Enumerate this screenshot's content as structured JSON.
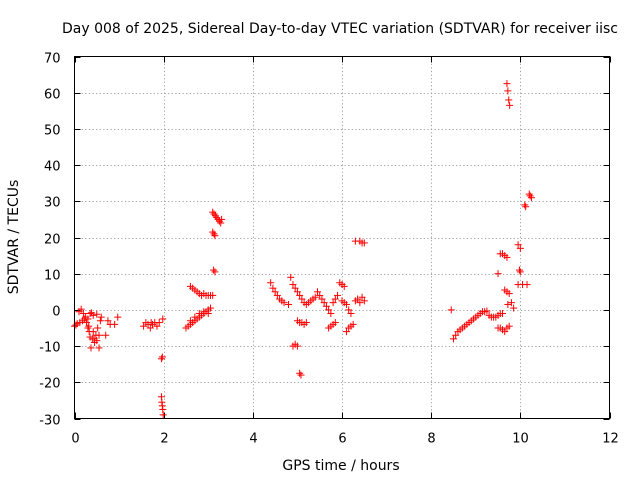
{
  "chart_data": {
    "type": "scatter",
    "title": "Day 008 of 2025, Sidereal Day-to-day VTEC variation (SDTVAR) for receiver iisc",
    "xlabel": "GPS time / hours",
    "ylabel": "SDTVAR / TECUs",
    "xlim": [
      0,
      12
    ],
    "ylim": [
      -30,
      70
    ],
    "xticks": [
      0,
      2,
      4,
      6,
      8,
      10,
      12
    ],
    "yticks": [
      -30,
      -20,
      -10,
      0,
      10,
      20,
      30,
      40,
      50,
      60,
      70
    ],
    "grid": true,
    "marker": "+",
    "marker_color": "#ff0000",
    "series": [
      {
        "name": "SDTVAR",
        "points": [
          [
            0.0,
            -4.5
          ],
          [
            0.03,
            -4.2
          ],
          [
            0.06,
            -3.8
          ],
          [
            0.1,
            -0.5
          ],
          [
            0.12,
            -3.5
          ],
          [
            0.15,
            0.2
          ],
          [
            0.18,
            -3
          ],
          [
            0.2,
            -1
          ],
          [
            0.22,
            -2.5
          ],
          [
            0.25,
            -2
          ],
          [
            0.27,
            -3.5
          ],
          [
            0.3,
            -5
          ],
          [
            0.32,
            -4.5
          ],
          [
            0.33,
            -6
          ],
          [
            0.35,
            -7.5
          ],
          [
            0.37,
            -10.5
          ],
          [
            0.4,
            -8
          ],
          [
            0.42,
            -6
          ],
          [
            0.44,
            -8
          ],
          [
            0.45,
            -9
          ],
          [
            0.48,
            -7
          ],
          [
            0.5,
            -8.5
          ],
          [
            0.52,
            -5
          ],
          [
            0.55,
            -10.5
          ],
          [
            0.55,
            -7
          ],
          [
            0.58,
            -3
          ],
          [
            0.6,
            -2
          ],
          [
            0.42,
            -1.5
          ],
          [
            0.38,
            -0.8
          ],
          [
            0.5,
            -1.2
          ],
          [
            0.7,
            -7
          ],
          [
            0.75,
            -3
          ],
          [
            0.8,
            -4
          ],
          [
            0.9,
            -4
          ],
          [
            0.97,
            -2
          ],
          [
            0.3,
            -2.5
          ],
          [
            0.35,
            -1
          ],
          [
            1.55,
            -4.5
          ],
          [
            1.6,
            -3.5
          ],
          [
            1.65,
            -4
          ],
          [
            1.7,
            -5
          ],
          [
            1.72,
            -3.5
          ],
          [
            1.75,
            -4
          ],
          [
            1.8,
            -3.5
          ],
          [
            1.85,
            -4.5
          ],
          [
            1.9,
            -3.5
          ],
          [
            1.95,
            -13.5
          ],
          [
            1.97,
            -13
          ],
          [
            1.98,
            -2.5
          ],
          [
            1.95,
            -24
          ],
          [
            1.96,
            -25.5
          ],
          [
            1.97,
            -26.5
          ],
          [
            1.98,
            -27.5
          ],
          [
            1.99,
            -29
          ],
          [
            2.5,
            -5
          ],
          [
            2.55,
            -4.5
          ],
          [
            2.6,
            -4
          ],
          [
            2.65,
            -3.5
          ],
          [
            2.7,
            -3
          ],
          [
            2.75,
            -2.5
          ],
          [
            2.8,
            -2
          ],
          [
            2.85,
            -1.5
          ],
          [
            2.9,
            -1
          ],
          [
            2.95,
            -0.5
          ],
          [
            3.0,
            0
          ],
          [
            3.05,
            0.5
          ],
          [
            2.6,
            -3
          ],
          [
            2.7,
            -2
          ],
          [
            2.8,
            -1
          ],
          [
            2.9,
            -0.5
          ],
          [
            3.0,
            -1
          ],
          [
            2.6,
            6.5
          ],
          [
            2.65,
            6
          ],
          [
            2.7,
            5.5
          ],
          [
            2.75,
            5
          ],
          [
            2.8,
            4.5
          ],
          [
            2.85,
            4
          ],
          [
            2.9,
            4.5
          ],
          [
            2.95,
            4
          ],
          [
            3.0,
            4
          ],
          [
            3.05,
            4
          ],
          [
            3.1,
            4
          ],
          [
            3.1,
            21.5
          ],
          [
            3.13,
            21
          ],
          [
            3.15,
            20.5
          ],
          [
            3.12,
            11
          ],
          [
            3.15,
            10.5
          ],
          [
            3.1,
            27
          ],
          [
            3.13,
            26.5
          ],
          [
            3.16,
            26
          ],
          [
            3.19,
            25.5
          ],
          [
            3.22,
            25
          ],
          [
            3.25,
            24.5
          ],
          [
            3.28,
            24
          ],
          [
            3.3,
            25
          ],
          [
            4.4,
            7.5
          ],
          [
            4.45,
            6
          ],
          [
            4.5,
            5
          ],
          [
            4.55,
            4
          ],
          [
            4.6,
            3
          ],
          [
            4.65,
            2.5
          ],
          [
            4.7,
            2
          ],
          [
            4.8,
            1.5
          ],
          [
            4.85,
            9
          ],
          [
            4.9,
            7
          ],
          [
            4.95,
            6
          ],
          [
            5.0,
            5
          ],
          [
            5.05,
            4
          ],
          [
            5.1,
            3
          ],
          [
            5.15,
            2
          ],
          [
            5.2,
            1.5
          ],
          [
            5.25,
            2
          ],
          [
            5.3,
            2.5
          ],
          [
            5.35,
            3
          ],
          [
            5.4,
            3.5
          ],
          [
            5.45,
            5
          ],
          [
            5.5,
            4
          ],
          [
            5.55,
            3
          ],
          [
            5.6,
            2
          ],
          [
            5.65,
            1
          ],
          [
            5.7,
            0
          ],
          [
            5.75,
            -1
          ],
          [
            5.8,
            2
          ],
          [
            5.85,
            3
          ],
          [
            5.9,
            4
          ],
          [
            5.0,
            -3
          ],
          [
            5.05,
            -3.5
          ],
          [
            5.1,
            -3.5
          ],
          [
            5.15,
            -4
          ],
          [
            5.2,
            -3.5
          ],
          [
            4.9,
            -10
          ],
          [
            4.95,
            -9.5
          ],
          [
            5.0,
            -10
          ],
          [
            5.05,
            -17.5
          ],
          [
            5.08,
            -18
          ],
          [
            5.95,
            7.5
          ],
          [
            6.0,
            7
          ],
          [
            6.05,
            6.5
          ],
          [
            6.0,
            2.5
          ],
          [
            6.05,
            2
          ],
          [
            6.1,
            1.5
          ],
          [
            6.15,
            0
          ],
          [
            6.2,
            -1
          ],
          [
            5.85,
            -3.5
          ],
          [
            5.8,
            -4
          ],
          [
            5.75,
            -4.5
          ],
          [
            5.7,
            -5
          ],
          [
            6.1,
            -6
          ],
          [
            6.15,
            -5
          ],
          [
            6.2,
            -4.5
          ],
          [
            6.25,
            -4
          ],
          [
            6.3,
            2.5
          ],
          [
            6.35,
            3
          ],
          [
            6.4,
            2
          ],
          [
            6.45,
            3.5
          ],
          [
            6.5,
            2.5
          ],
          [
            6.3,
            19
          ],
          [
            6.4,
            19
          ],
          [
            6.45,
            18.5
          ],
          [
            6.5,
            18.5
          ],
          [
            8.45,
            0
          ],
          [
            8.5,
            -8
          ],
          [
            8.55,
            -7
          ],
          [
            8.6,
            -6
          ],
          [
            8.65,
            -5.5
          ],
          [
            8.7,
            -5
          ],
          [
            8.75,
            -4.5
          ],
          [
            8.8,
            -4
          ],
          [
            8.85,
            -3.5
          ],
          [
            8.9,
            -3
          ],
          [
            8.95,
            -2.5
          ],
          [
            9.0,
            -2
          ],
          [
            9.05,
            -1.5
          ],
          [
            9.1,
            -1
          ],
          [
            9.15,
            -0.5
          ],
          [
            9.2,
            -0.5
          ],
          [
            9.25,
            -0.3
          ],
          [
            9.3,
            -1.5
          ],
          [
            9.35,
            -2
          ],
          [
            9.4,
            -2
          ],
          [
            9.45,
            -2
          ],
          [
            9.5,
            -1.5
          ],
          [
            9.55,
            -1
          ],
          [
            9.6,
            -1
          ],
          [
            9.5,
            -5
          ],
          [
            9.55,
            -5
          ],
          [
            9.6,
            -5.5
          ],
          [
            9.65,
            -6
          ],
          [
            9.7,
            -5
          ],
          [
            9.75,
            -4.5
          ],
          [
            9.5,
            10
          ],
          [
            9.55,
            15.5
          ],
          [
            9.6,
            15.5
          ],
          [
            9.65,
            15
          ],
          [
            9.7,
            14.5
          ],
          [
            9.65,
            5.5
          ],
          [
            9.7,
            5
          ],
          [
            9.75,
            4.5
          ],
          [
            9.8,
            2
          ],
          [
            9.85,
            0.5
          ],
          [
            9.72,
            1.5
          ],
          [
            9.7,
            62.5
          ],
          [
            9.72,
            60.5
          ],
          [
            9.74,
            58
          ],
          [
            9.76,
            56.5
          ],
          [
            9.95,
            18
          ],
          [
            10.0,
            17
          ],
          [
            9.98,
            11
          ],
          [
            10.0,
            10.5
          ],
          [
            9.95,
            7
          ],
          [
            10.05,
            7
          ],
          [
            10.15,
            7
          ],
          [
            10.1,
            29
          ],
          [
            10.12,
            28.5
          ],
          [
            10.2,
            32
          ],
          [
            10.22,
            31.5
          ],
          [
            10.25,
            31
          ]
        ]
      }
    ]
  }
}
